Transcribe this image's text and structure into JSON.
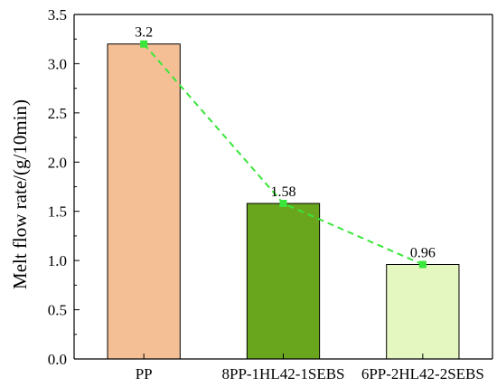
{
  "chart_data": {
    "type": "bar",
    "categories": [
      "PP",
      "8PP-1HL42-1SEBS",
      "6PP-2HL42-2SEBS"
    ],
    "values": [
      3.2,
      1.58,
      0.96
    ],
    "data_labels": [
      "3.2",
      "1.58",
      "0.96"
    ],
    "bar_colors": [
      "#f5bf96",
      "#6aa51e",
      "#e4f7c1"
    ],
    "line_overlay": {
      "color": "#39e639",
      "style": "dashed",
      "marker": "square",
      "values": [
        3.2,
        1.58,
        0.96
      ]
    },
    "title": "",
    "xlabel": "",
    "ylabel": "Melt flow rate/(g/10min)",
    "ylim": [
      0,
      3.5
    ],
    "yticks": [
      0.0,
      0.5,
      1.0,
      1.5,
      2.0,
      2.5,
      3.0,
      3.5
    ],
    "ytick_labels": [
      "0.0",
      "0.5",
      "1.0",
      "1.5",
      "2.0",
      "2.5",
      "3.0",
      "3.5"
    ],
    "grid": false,
    "legend": "none"
  }
}
